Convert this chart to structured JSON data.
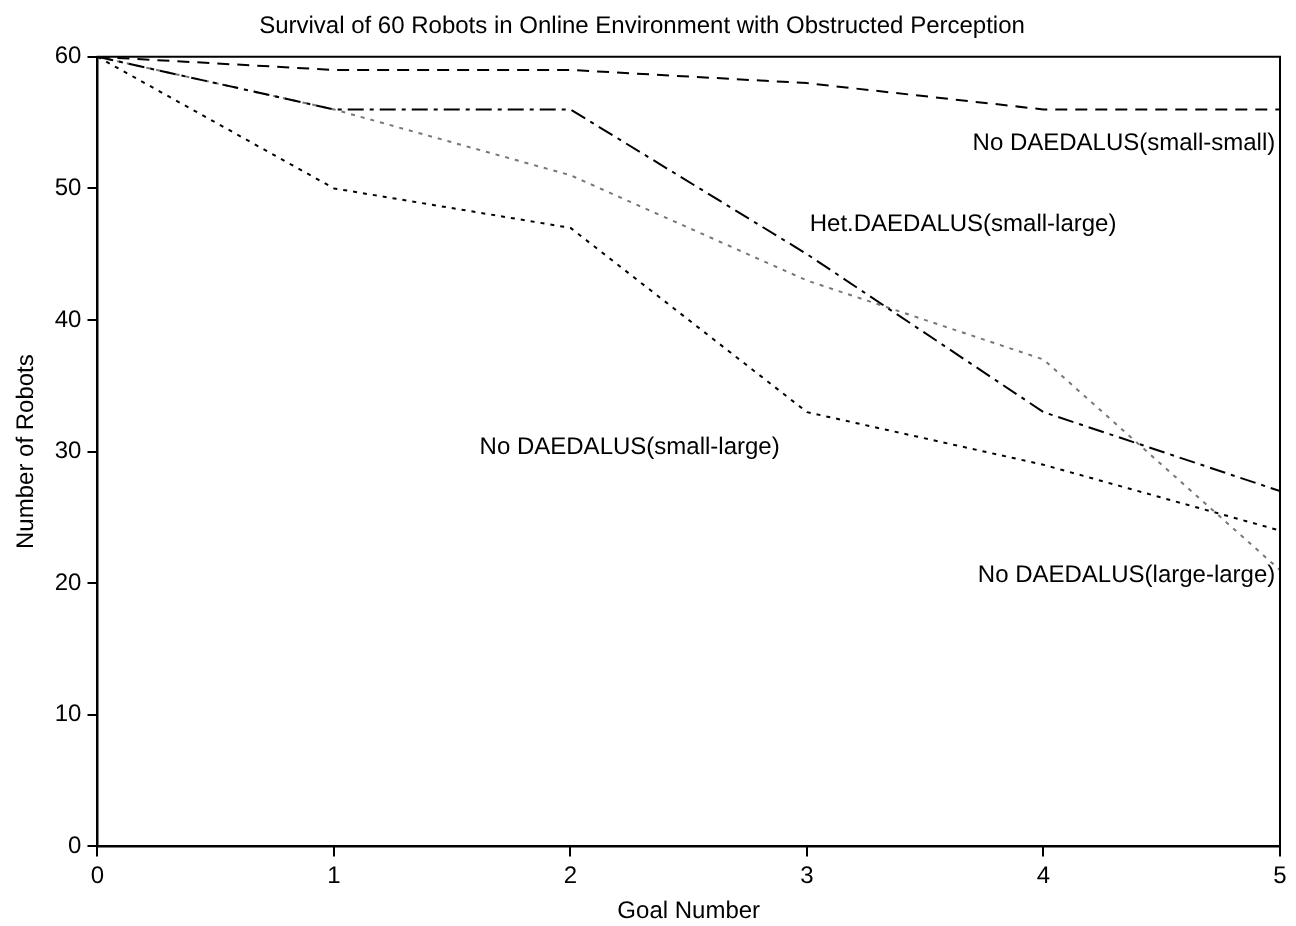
{
  "chart_data": {
    "type": "line",
    "title": "Survival of 60 Robots in Online Environment with Obstructed Perception",
    "xlabel": "Goal Number",
    "ylabel": "Number of Robots",
    "x": [
      0,
      1,
      2,
      3,
      4,
      5
    ],
    "xlim": [
      0,
      5
    ],
    "xticks": [
      0,
      1,
      2,
      3,
      4,
      5
    ],
    "ylim": [
      0,
      60
    ],
    "yticks": [
      0,
      10,
      20,
      30,
      40,
      50,
      60
    ],
    "grid": false,
    "legend": false,
    "marker": "none",
    "series": [
      {
        "name": "No DAEDALUS(small-small)",
        "color": "#000000",
        "line_style": "dashed",
        "values": [
          60,
          59,
          59,
          58,
          56,
          56
        ]
      },
      {
        "name": "Het.DAEDALUS(small-large)",
        "color": "#000000",
        "line_style": "dashdot",
        "values": [
          60,
          56,
          56,
          45,
          33,
          27
        ]
      },
      {
        "name": "No DAEDALUS(small-large)",
        "color": "#000000",
        "line_style": "dotted",
        "values": [
          60,
          50,
          47,
          33,
          29,
          24
        ]
      },
      {
        "name": "No DAEDALUS(large-large)",
        "color": "#777777",
        "line_style": "dotted",
        "values": [
          60,
          56,
          51,
          43,
          37,
          21
        ]
      }
    ]
  }
}
